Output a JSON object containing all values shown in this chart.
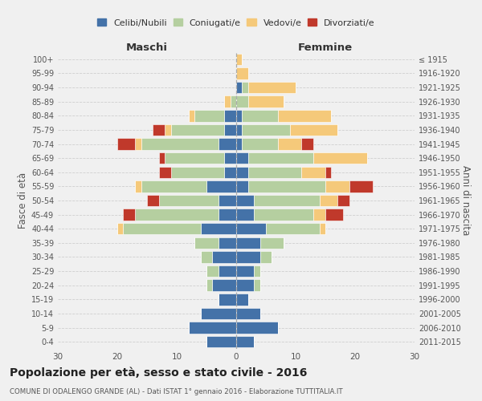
{
  "age_groups": [
    "0-4",
    "5-9",
    "10-14",
    "15-19",
    "20-24",
    "25-29",
    "30-34",
    "35-39",
    "40-44",
    "45-49",
    "50-54",
    "55-59",
    "60-64",
    "65-69",
    "70-74",
    "75-79",
    "80-84",
    "85-89",
    "90-94",
    "95-99",
    "100+"
  ],
  "birth_years": [
    "2011-2015",
    "2006-2010",
    "2001-2005",
    "1996-2000",
    "1991-1995",
    "1986-1990",
    "1981-1985",
    "1976-1980",
    "1971-1975",
    "1966-1970",
    "1961-1965",
    "1956-1960",
    "1951-1955",
    "1946-1950",
    "1941-1945",
    "1936-1940",
    "1931-1935",
    "1926-1930",
    "1921-1925",
    "1916-1920",
    "≤ 1915"
  ],
  "colors": {
    "celibi": "#4472a8",
    "coniugati": "#b5cfa0",
    "vedovi": "#f5c97a",
    "divorziati": "#c0392b"
  },
  "maschi": {
    "celibi": [
      5,
      8,
      6,
      3,
      4,
      3,
      4,
      3,
      6,
      3,
      3,
      5,
      2,
      2,
      3,
      2,
      2,
      0,
      0,
      0,
      0
    ],
    "coniugati": [
      0,
      0,
      0,
      0,
      1,
      2,
      2,
      4,
      13,
      14,
      10,
      11,
      9,
      10,
      13,
      9,
      5,
      1,
      0,
      0,
      0
    ],
    "vedovi": [
      0,
      0,
      0,
      0,
      0,
      0,
      0,
      0,
      1,
      0,
      0,
      1,
      0,
      0,
      1,
      1,
      1,
      1,
      0,
      0,
      0
    ],
    "divorziati": [
      0,
      0,
      0,
      0,
      0,
      0,
      0,
      0,
      0,
      2,
      2,
      0,
      2,
      1,
      3,
      2,
      0,
      0,
      0,
      0,
      0
    ]
  },
  "femmine": {
    "celibi": [
      3,
      7,
      4,
      2,
      3,
      3,
      4,
      4,
      5,
      3,
      3,
      2,
      2,
      2,
      1,
      1,
      1,
      0,
      1,
      0,
      0
    ],
    "coniugati": [
      0,
      0,
      0,
      0,
      1,
      1,
      2,
      4,
      9,
      10,
      11,
      13,
      9,
      11,
      6,
      8,
      6,
      2,
      1,
      0,
      0
    ],
    "vedovi": [
      0,
      0,
      0,
      0,
      0,
      0,
      0,
      0,
      1,
      2,
      3,
      4,
      4,
      9,
      4,
      8,
      9,
      6,
      8,
      2,
      1
    ],
    "divorziati": [
      0,
      0,
      0,
      0,
      0,
      0,
      0,
      0,
      0,
      3,
      2,
      4,
      1,
      0,
      2,
      0,
      0,
      0,
      0,
      0,
      0
    ]
  },
  "xlim": 30,
  "title": "Popolazione per età, sesso e stato civile - 2016",
  "subtitle": "COMUNE DI ODALENGO GRANDE (AL) - Dati ISTAT 1° gennaio 2016 - Elaborazione TUTTITALIA.IT",
  "ylabel_left": "Fasce di età",
  "ylabel_right": "Anni di nascita",
  "xlabel_left": "Maschi",
  "xlabel_right": "Femmine",
  "background_color": "#f0f0f0",
  "grid_color": "#cccccc"
}
